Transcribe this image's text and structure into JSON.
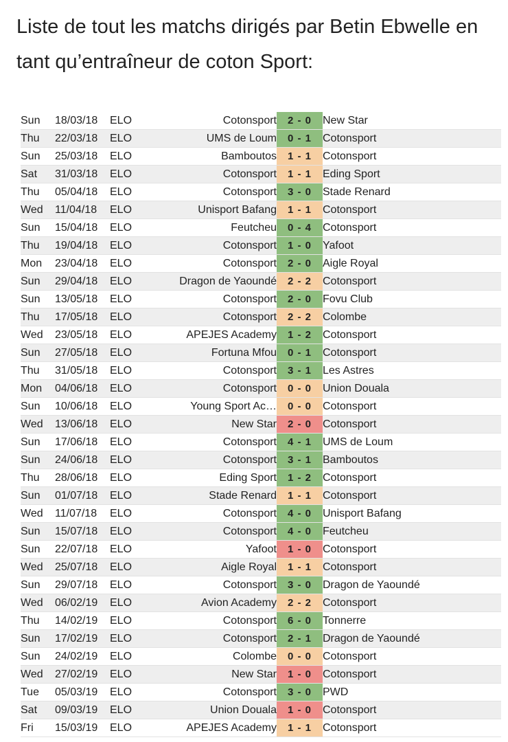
{
  "heading": "Liste de tout les matchs dirigés par Betin Ebwelle en tant qu’entraîneur de coton Sport:",
  "colors": {
    "win": "#8fbe7f",
    "draw": "#f7cfa3",
    "loss": "#ef8f8b",
    "row_alt": "#eeeeee"
  },
  "matches": [
    {
      "day": "Sun",
      "date": "18/03/18",
      "comp": "ELO",
      "home": "Cotonsport",
      "score": "2 - 0",
      "away": "New Star",
      "result": "win"
    },
    {
      "day": "Thu",
      "date": "22/03/18",
      "comp": "ELO",
      "home": "UMS de Loum",
      "score": "0 - 1",
      "away": "Cotonsport",
      "result": "win"
    },
    {
      "day": "Sun",
      "date": "25/03/18",
      "comp": "ELO",
      "home": "Bamboutos",
      "score": "1 - 1",
      "away": "Cotonsport",
      "result": "draw"
    },
    {
      "day": "Sat",
      "date": "31/03/18",
      "comp": "ELO",
      "home": "Cotonsport",
      "score": "1 - 1",
      "away": "Eding Sport",
      "result": "draw"
    },
    {
      "day": "Thu",
      "date": "05/04/18",
      "comp": "ELO",
      "home": "Cotonsport",
      "score": "3 - 0",
      "away": "Stade Renard",
      "result": "win"
    },
    {
      "day": "Wed",
      "date": "11/04/18",
      "comp": "ELO",
      "home": "Unisport Bafang",
      "score": "1 - 1",
      "away": "Cotonsport",
      "result": "draw"
    },
    {
      "day": "Sun",
      "date": "15/04/18",
      "comp": "ELO",
      "home": "Feutcheu",
      "score": "0 - 4",
      "away": "Cotonsport",
      "result": "win"
    },
    {
      "day": "Thu",
      "date": "19/04/18",
      "comp": "ELO",
      "home": "Cotonsport",
      "score": "1 - 0",
      "away": "Yafoot",
      "result": "win"
    },
    {
      "day": "Mon",
      "date": "23/04/18",
      "comp": "ELO",
      "home": "Cotonsport",
      "score": "2 - 0",
      "away": "Aigle Royal",
      "result": "win"
    },
    {
      "day": "Sun",
      "date": "29/04/18",
      "comp": "ELO",
      "home": "Dragon de Yaoundé",
      "score": "2 - 2",
      "away": "Cotonsport",
      "result": "draw"
    },
    {
      "day": "Sun",
      "date": "13/05/18",
      "comp": "ELO",
      "home": "Cotonsport",
      "score": "2 - 0",
      "away": "Fovu Club",
      "result": "win"
    },
    {
      "day": "Thu",
      "date": "17/05/18",
      "comp": "ELO",
      "home": "Cotonsport",
      "score": "2 - 2",
      "away": "Colombe",
      "result": "draw"
    },
    {
      "day": "Wed",
      "date": "23/05/18",
      "comp": "ELO",
      "home": "APEJES Academy",
      "score": "1 - 2",
      "away": "Cotonsport",
      "result": "win"
    },
    {
      "day": "Sun",
      "date": "27/05/18",
      "comp": "ELO",
      "home": "Fortuna Mfou",
      "score": "0 - 1",
      "away": "Cotonsport",
      "result": "win"
    },
    {
      "day": "Thu",
      "date": "31/05/18",
      "comp": "ELO",
      "home": "Cotonsport",
      "score": "3 - 1",
      "away": "Les Astres",
      "result": "win"
    },
    {
      "day": "Mon",
      "date": "04/06/18",
      "comp": "ELO",
      "home": "Cotonsport",
      "score": "0 - 0",
      "away": "Union Douala",
      "result": "draw"
    },
    {
      "day": "Sun",
      "date": "10/06/18",
      "comp": "ELO",
      "home": "Young Sport Ac…",
      "score": "0 - 0",
      "away": "Cotonsport",
      "result": "draw"
    },
    {
      "day": "Wed",
      "date": "13/06/18",
      "comp": "ELO",
      "home": "New Star",
      "score": "2 - 0",
      "away": "Cotonsport",
      "result": "loss"
    },
    {
      "day": "Sun",
      "date": "17/06/18",
      "comp": "ELO",
      "home": "Cotonsport",
      "score": "4 - 1",
      "away": "UMS de Loum",
      "result": "win"
    },
    {
      "day": "Sun",
      "date": "24/06/18",
      "comp": "ELO",
      "home": "Cotonsport",
      "score": "3 - 1",
      "away": "Bamboutos",
      "result": "win"
    },
    {
      "day": "Thu",
      "date": "28/06/18",
      "comp": "ELO",
      "home": "Eding Sport",
      "score": "1 - 2",
      "away": "Cotonsport",
      "result": "win"
    },
    {
      "day": "Sun",
      "date": "01/07/18",
      "comp": "ELO",
      "home": "Stade Renard",
      "score": "1 - 1",
      "away": "Cotonsport",
      "result": "draw"
    },
    {
      "day": "Wed",
      "date": "11/07/18",
      "comp": "ELO",
      "home": "Cotonsport",
      "score": "4 - 0",
      "away": "Unisport Bafang",
      "result": "win"
    },
    {
      "day": "Sun",
      "date": "15/07/18",
      "comp": "ELO",
      "home": "Cotonsport",
      "score": "4 - 0",
      "away": "Feutcheu",
      "result": "win"
    },
    {
      "day": "Sun",
      "date": "22/07/18",
      "comp": "ELO",
      "home": "Yafoot",
      "score": "1 - 0",
      "away": "Cotonsport",
      "result": "loss"
    },
    {
      "day": "Wed",
      "date": "25/07/18",
      "comp": "ELO",
      "home": "Aigle Royal",
      "score": "1 - 1",
      "away": "Cotonsport",
      "result": "draw"
    },
    {
      "day": "Sun",
      "date": "29/07/18",
      "comp": "ELO",
      "home": "Cotonsport",
      "score": "3 - 0",
      "away": "Dragon de Yaoundé",
      "result": "win"
    },
    {
      "day": "Wed",
      "date": "06/02/19",
      "comp": "ELO",
      "home": "Avion Academy",
      "score": "2 - 2",
      "away": "Cotonsport",
      "result": "draw"
    },
    {
      "day": "Thu",
      "date": "14/02/19",
      "comp": "ELO",
      "home": "Cotonsport",
      "score": "6 - 0",
      "away": "Tonnerre",
      "result": "win"
    },
    {
      "day": "Sun",
      "date": "17/02/19",
      "comp": "ELO",
      "home": "Cotonsport",
      "score": "2 - 1",
      "away": "Dragon de Yaoundé",
      "result": "win"
    },
    {
      "day": "Sun",
      "date": "24/02/19",
      "comp": "ELO",
      "home": "Colombe",
      "score": "0 - 0",
      "away": "Cotonsport",
      "result": "draw"
    },
    {
      "day": "Wed",
      "date": "27/02/19",
      "comp": "ELO",
      "home": "New Star",
      "score": "1 - 0",
      "away": "Cotonsport",
      "result": "loss"
    },
    {
      "day": "Tue",
      "date": "05/03/19",
      "comp": "ELO",
      "home": "Cotonsport",
      "score": "3 - 0",
      "away": "PWD",
      "result": "win"
    },
    {
      "day": "Sat",
      "date": "09/03/19",
      "comp": "ELO",
      "home": "Union Douala",
      "score": "1 - 0",
      "away": "Cotonsport",
      "result": "loss"
    },
    {
      "day": "Fri",
      "date": "15/03/19",
      "comp": "ELO",
      "home": "APEJES Academy",
      "score": "1 - 1",
      "away": "Cotonsport",
      "result": "draw"
    }
  ]
}
